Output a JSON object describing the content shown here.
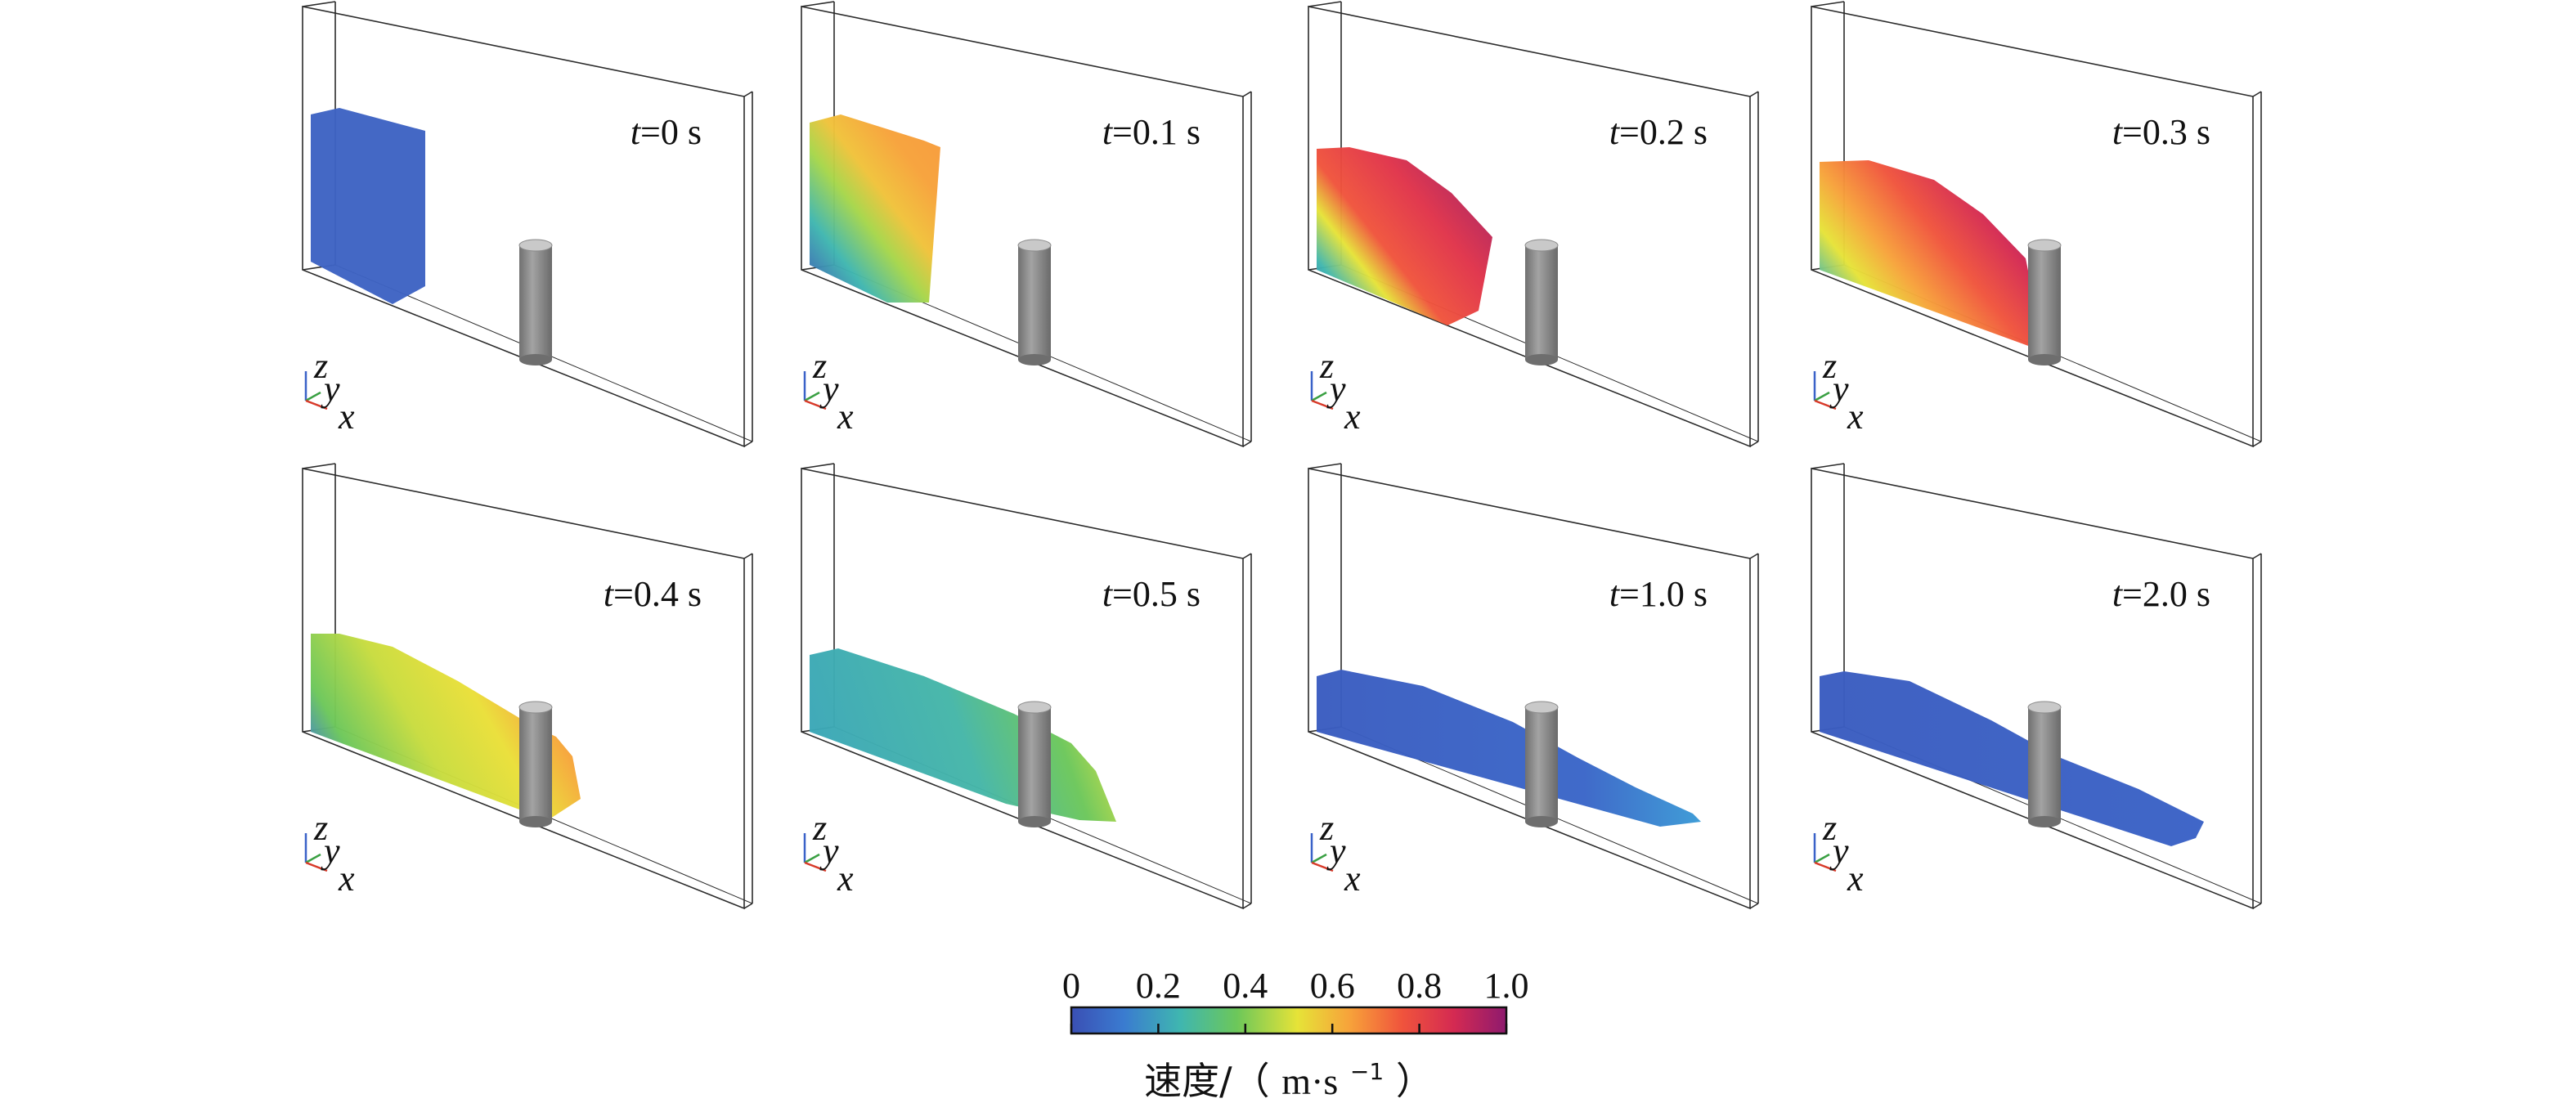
{
  "panels": [
    {
      "time": "0 s",
      "stage": 0
    },
    {
      "time": "0.1 s",
      "stage": 1
    },
    {
      "time": "0.2 s",
      "stage": 2
    },
    {
      "time": "0.3 s",
      "stage": 3
    },
    {
      "time": "0.4 s",
      "stage": 4
    },
    {
      "time": "0.5 s",
      "stage": 5
    },
    {
      "time": "1.0 s",
      "stage": 6
    },
    {
      "time": "2.0 s",
      "stage": 7
    }
  ],
  "time_symbol": "t",
  "equals": "=",
  "axes_labels": {
    "z": "z",
    "y": "y",
    "x": "x"
  },
  "axis_colors": {
    "x": "#d83a2a",
    "y": "#3aa043",
    "z": "#3a62c8"
  },
  "colorbar": {
    "ticks": [
      "0",
      "0.2",
      "0.4",
      "0.6",
      "0.8",
      "1.0"
    ],
    "tick_values": [
      0,
      0.2,
      0.4,
      0.6,
      0.8,
      1.0
    ],
    "range": [
      0,
      1.0
    ],
    "title_prefix": "速度/（",
    "title_unit": "m·s",
    "title_sup": "−1",
    "title_suffix": "）",
    "colormap": [
      "#3a4fb4",
      "#3a7bd0",
      "#3fb6b0",
      "#6cc75a",
      "#e6e338",
      "#f7a23a",
      "#f0543c",
      "#d42a52",
      "#8e1a6e"
    ]
  },
  "colors": {
    "box_edge": "#2b2b2b",
    "cylinder_body": "#8d8d8d",
    "cylinder_top": "#c9c9c9"
  }
}
